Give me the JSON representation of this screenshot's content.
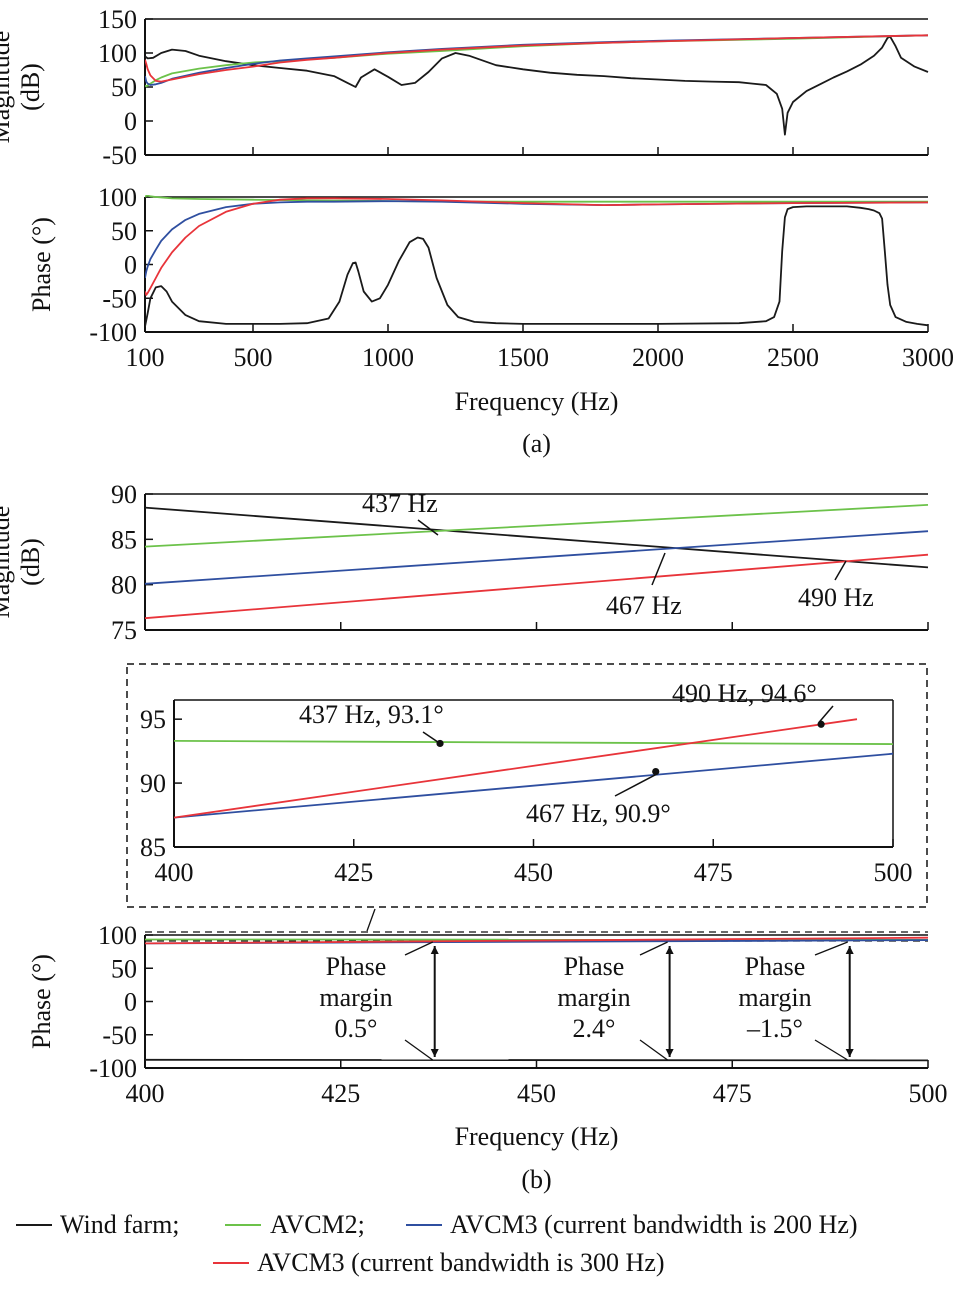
{
  "chart_data": [
    {
      "id": "a-magnitude",
      "type": "line",
      "ylabel": [
        "Magnitude",
        "(dB)"
      ],
      "xlim": [
        100,
        3000
      ],
      "ylim": [
        -50,
        150
      ],
      "yticks": [
        150,
        100,
        50,
        0,
        -50
      ],
      "series": [
        {
          "key": "wf",
          "x": [
            100,
            110,
            130,
            160,
            200,
            250,
            300,
            400,
            500,
            600,
            700,
            800,
            850,
            880,
            900,
            950,
            1000,
            1050,
            1100,
            1150,
            1200,
            1250,
            1300,
            1400,
            1500,
            1600,
            1700,
            1800,
            1900,
            2000,
            2100,
            2200,
            2300,
            2350,
            2400,
            2440,
            2460,
            2470,
            2480,
            2500,
            2550,
            2600,
            2650,
            2700,
            2750,
            2800,
            2830,
            2850,
            2860,
            2880,
            2900,
            2950,
            3000
          ],
          "y": [
            95,
            92,
            93,
            100,
            105,
            103,
            96,
            88,
            82,
            78,
            74,
            66,
            56,
            50,
            64,
            76,
            65,
            53,
            56,
            72,
            92,
            100,
            96,
            82,
            76,
            71,
            68,
            66,
            63,
            61,
            59,
            58,
            57,
            55,
            53,
            40,
            18,
            -20,
            12,
            28,
            44,
            54,
            64,
            73,
            83,
            96,
            108,
            122,
            124,
            110,
            93,
            80,
            72
          ]
        },
        {
          "key": "avcm2",
          "x": [
            100,
            105,
            110,
            120,
            140,
            160,
            200,
            300,
            400,
            500,
            600,
            700,
            800,
            1000,
            1200,
            1500,
            1800,
            2000,
            2500,
            3000
          ],
          "y": [
            52,
            51,
            52,
            55,
            60,
            64,
            70,
            77,
            82,
            86,
            88,
            91,
            93,
            99,
            103,
            110,
            115,
            117,
            121,
            126
          ]
        },
        {
          "key": "avcm3_200",
          "x": [
            100,
            105,
            110,
            120,
            140,
            160,
            200,
            300,
            400,
            500,
            600,
            700,
            800,
            1000,
            1200,
            1500,
            1800,
            2000,
            2500,
            3000
          ],
          "y": [
            66,
            58,
            55,
            53,
            54,
            56,
            62,
            71,
            78,
            84,
            89,
            92,
            95,
            101,
            106,
            112,
            116,
            118,
            122,
            126
          ]
        },
        {
          "key": "avcm3_300",
          "x": [
            100,
            105,
            110,
            120,
            140,
            160,
            200,
            300,
            400,
            500,
            600,
            700,
            800,
            1000,
            1200,
            1500,
            1800,
            2000,
            2500,
            3000
          ],
          "y": [
            90,
            84,
            76,
            67,
            59,
            58,
            61,
            69,
            75,
            80,
            86,
            90,
            93,
            100,
            105,
            111,
            115,
            117,
            122,
            126
          ]
        }
      ]
    },
    {
      "id": "a-phase",
      "type": "line",
      "ylabel": [
        "Phase (°)"
      ],
      "xlabel": "Frequency (Hz)",
      "caption": "(a)",
      "xlim": [
        100,
        3000
      ],
      "ylim": [
        -100,
        100
      ],
      "yticks": [
        100,
        50,
        0,
        -50,
        -100
      ],
      "xticks": [
        100,
        500,
        1000,
        1500,
        2000,
        2500,
        3000
      ],
      "series": [
        {
          "key": "wf",
          "x": [
            100,
            110,
            120,
            140,
            160,
            180,
            200,
            250,
            300,
            400,
            500,
            600,
            700,
            780,
            820,
            850,
            870,
            880,
            890,
            910,
            940,
            970,
            1000,
            1040,
            1080,
            1110,
            1130,
            1150,
            1180,
            1220,
            1260,
            1320,
            1400,
            1500,
            1700,
            2000,
            2300,
            2400,
            2430,
            2450,
            2460,
            2470,
            2480,
            2500,
            2550,
            2600,
            2650,
            2700,
            2750,
            2780,
            2800,
            2820,
            2830,
            2840,
            2850,
            2860,
            2880,
            2920,
            2960,
            3000
          ],
          "y": [
            -92,
            -72,
            -50,
            -34,
            -32,
            -40,
            -55,
            -75,
            -84,
            -88,
            -88,
            -88,
            -87,
            -80,
            -55,
            -15,
            2,
            3,
            -10,
            -40,
            -55,
            -50,
            -30,
            5,
            33,
            40,
            38,
            25,
            -20,
            -60,
            -78,
            -85,
            -87,
            -88,
            -88,
            -88,
            -87,
            -84,
            -78,
            -55,
            20,
            70,
            82,
            85,
            86,
            86,
            86,
            86,
            84,
            82,
            80,
            76,
            68,
            20,
            -30,
            -60,
            -78,
            -85,
            -88,
            -90
          ]
        },
        {
          "key": "avcm2",
          "x": [
            100,
            105,
            110,
            120,
            140,
            200,
            300,
            500,
            700,
            1000,
            1500,
            2000,
            2500,
            3000
          ],
          "y": [
            100,
            102,
            102,
            101,
            100,
            98,
            97,
            96,
            95,
            94,
            93,
            93,
            93,
            93
          ]
        },
        {
          "key": "avcm3_200",
          "x": [
            100,
            105,
            110,
            120,
            140,
            160,
            200,
            250,
            300,
            400,
            500,
            600,
            700,
            800,
            1000,
            1200,
            1500,
            1800,
            2000,
            2500,
            3000
          ],
          "y": [
            -20,
            -10,
            -3,
            8,
            22,
            35,
            52,
            66,
            75,
            85,
            90,
            92,
            93,
            93,
            94,
            93,
            90,
            88,
            89,
            91,
            92
          ]
        },
        {
          "key": "avcm3_300",
          "x": [
            100,
            105,
            110,
            120,
            140,
            160,
            200,
            250,
            300,
            400,
            500,
            600,
            700,
            800,
            1000,
            1200,
            1500,
            1800,
            2000,
            2500,
            3000
          ],
          "y": [
            -40,
            -45,
            -42,
            -35,
            -20,
            -5,
            18,
            40,
            57,
            78,
            90,
            96,
            98,
            98,
            97,
            95,
            91,
            88,
            89,
            91,
            92
          ]
        }
      ]
    },
    {
      "id": "b-magnitude",
      "type": "line",
      "ylabel": [
        "Magnitude",
        "(dB)"
      ],
      "xlim": [
        400,
        500
      ],
      "ylim": [
        75,
        90
      ],
      "yticks": [
        90,
        85,
        80,
        75
      ],
      "annotations": [
        "437 Hz",
        "467 Hz",
        "490 Hz"
      ],
      "series": [
        {
          "key": "wf",
          "x": [
            400,
            500
          ],
          "y": [
            88.5,
            81.9
          ]
        },
        {
          "key": "avcm2",
          "x": [
            400,
            500
          ],
          "y": [
            84.2,
            88.8
          ]
        },
        {
          "key": "avcm3_200",
          "x": [
            400,
            500
          ],
          "y": [
            80.1,
            85.9
          ]
        },
        {
          "key": "avcm3_300",
          "x": [
            400,
            500
          ],
          "y": [
            76.3,
            83.3
          ]
        }
      ]
    },
    {
      "id": "b-phase-inset",
      "type": "line",
      "xlim": [
        400,
        500
      ],
      "ylim": [
        85,
        96.5
      ],
      "yticks": [
        95,
        90,
        85
      ],
      "xticks": [
        400,
        425,
        450,
        475,
        500
      ],
      "annotations": [
        "437 Hz, 93.1°",
        "467 Hz, 90.9°",
        "490 Hz, 94.6°"
      ],
      "points": [
        {
          "x": 437,
          "y": 93.1
        },
        {
          "x": 467,
          "y": 90.9
        },
        {
          "x": 490,
          "y": 94.6
        }
      ],
      "series": [
        {
          "key": "avcm2",
          "x": [
            400,
            500
          ],
          "y": [
            93.3,
            93.05
          ]
        },
        {
          "key": "avcm3_200",
          "x": [
            400,
            500
          ],
          "y": [
            87.3,
            92.3
          ]
        },
        {
          "key": "avcm3_300",
          "x": [
            400,
            495
          ],
          "y": [
            87.3,
            95.0
          ]
        }
      ]
    },
    {
      "id": "b-phase",
      "type": "line",
      "ylabel": [
        "Phase (°)"
      ],
      "xlabel": "Frequency (Hz)",
      "caption": "(b)",
      "xlim": [
        400,
        500
      ],
      "ylim": [
        -100,
        100
      ],
      "yticks": [
        100,
        50,
        0,
        -50,
        -100
      ],
      "xticks": [
        400,
        425,
        450,
        475,
        500
      ],
      "margins": [
        {
          "x": 437,
          "lines": [
            "Phase",
            "margin",
            "0.5°"
          ]
        },
        {
          "x": 467,
          "lines": [
            "Phase",
            "margin",
            "2.4°"
          ]
        },
        {
          "x": 490,
          "lines": [
            "Phase",
            "margin",
            "–1.5°"
          ]
        }
      ],
      "series": [
        {
          "key": "wf",
          "x": [
            400,
            500
          ],
          "y": [
            -87.6,
            -88.6
          ]
        },
        {
          "key": "avcm2",
          "x": [
            400,
            500
          ],
          "y": [
            93.3,
            93.0
          ]
        },
        {
          "key": "avcm3_200",
          "x": [
            400,
            500
          ],
          "y": [
            87.3,
            92.3
          ]
        },
        {
          "key": "avcm3_300",
          "x": [
            400,
            500
          ],
          "y": [
            87.3,
            96.0
          ]
        }
      ]
    }
  ],
  "legend": {
    "items": [
      {
        "key": "wf",
        "label": "Wind farm;"
      },
      {
        "key": "avcm2",
        "label": "AVCM2;"
      },
      {
        "key": "avcm3_200",
        "label": "AVCM3 (current bandwidth is 200 Hz)"
      },
      {
        "key": "avcm3_300",
        "label": "AVCM3 (current bandwidth is 300 Hz)"
      }
    ]
  },
  "colors": {
    "wf": "#1a1a1a",
    "avcm2": "#6cc24a",
    "avcm3_200": "#2f4fa0",
    "avcm3_300": "#e8343a"
  }
}
